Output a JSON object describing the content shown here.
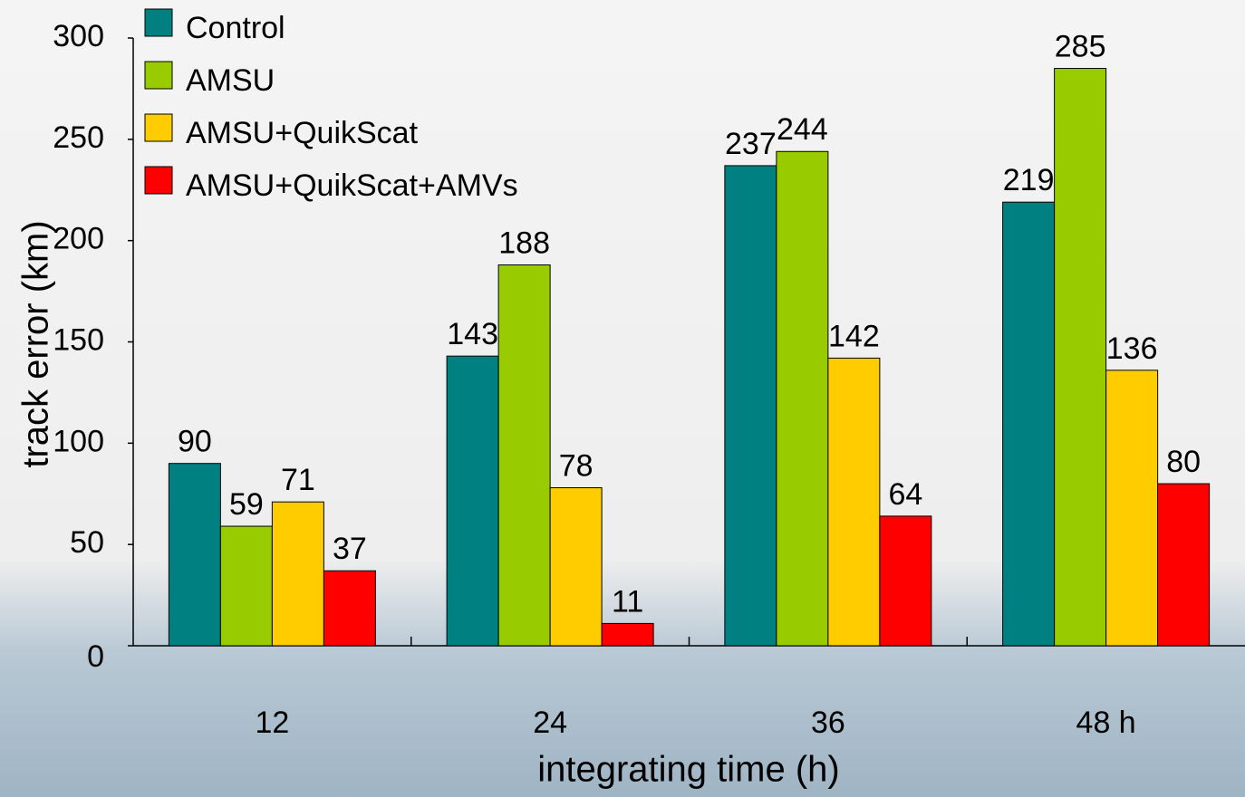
{
  "chart_data": {
    "type": "bar",
    "x_label": "integrating time (h)",
    "y_label": "track error (km)",
    "categories": [
      "12",
      "24",
      "36",
      "48 h"
    ],
    "series": [
      {
        "name": "Control",
        "color": "#008080",
        "values": [
          90,
          143,
          237,
          219
        ]
      },
      {
        "name": "AMSU",
        "color": "#99cc00",
        "values": [
          59,
          188,
          244,
          285
        ]
      },
      {
        "name": "AMSU+QuikScat",
        "color": "#ffcc00",
        "values": [
          71,
          78,
          142,
          136
        ]
      },
      {
        "name": "AMSU+QuikScat+AMVs",
        "color": "#ff0000",
        "values": [
          37,
          11,
          64,
          80
        ]
      }
    ],
    "ylim": [
      0,
      300
    ],
    "yticks": [
      0,
      50,
      100,
      150,
      200,
      250,
      300
    ]
  }
}
